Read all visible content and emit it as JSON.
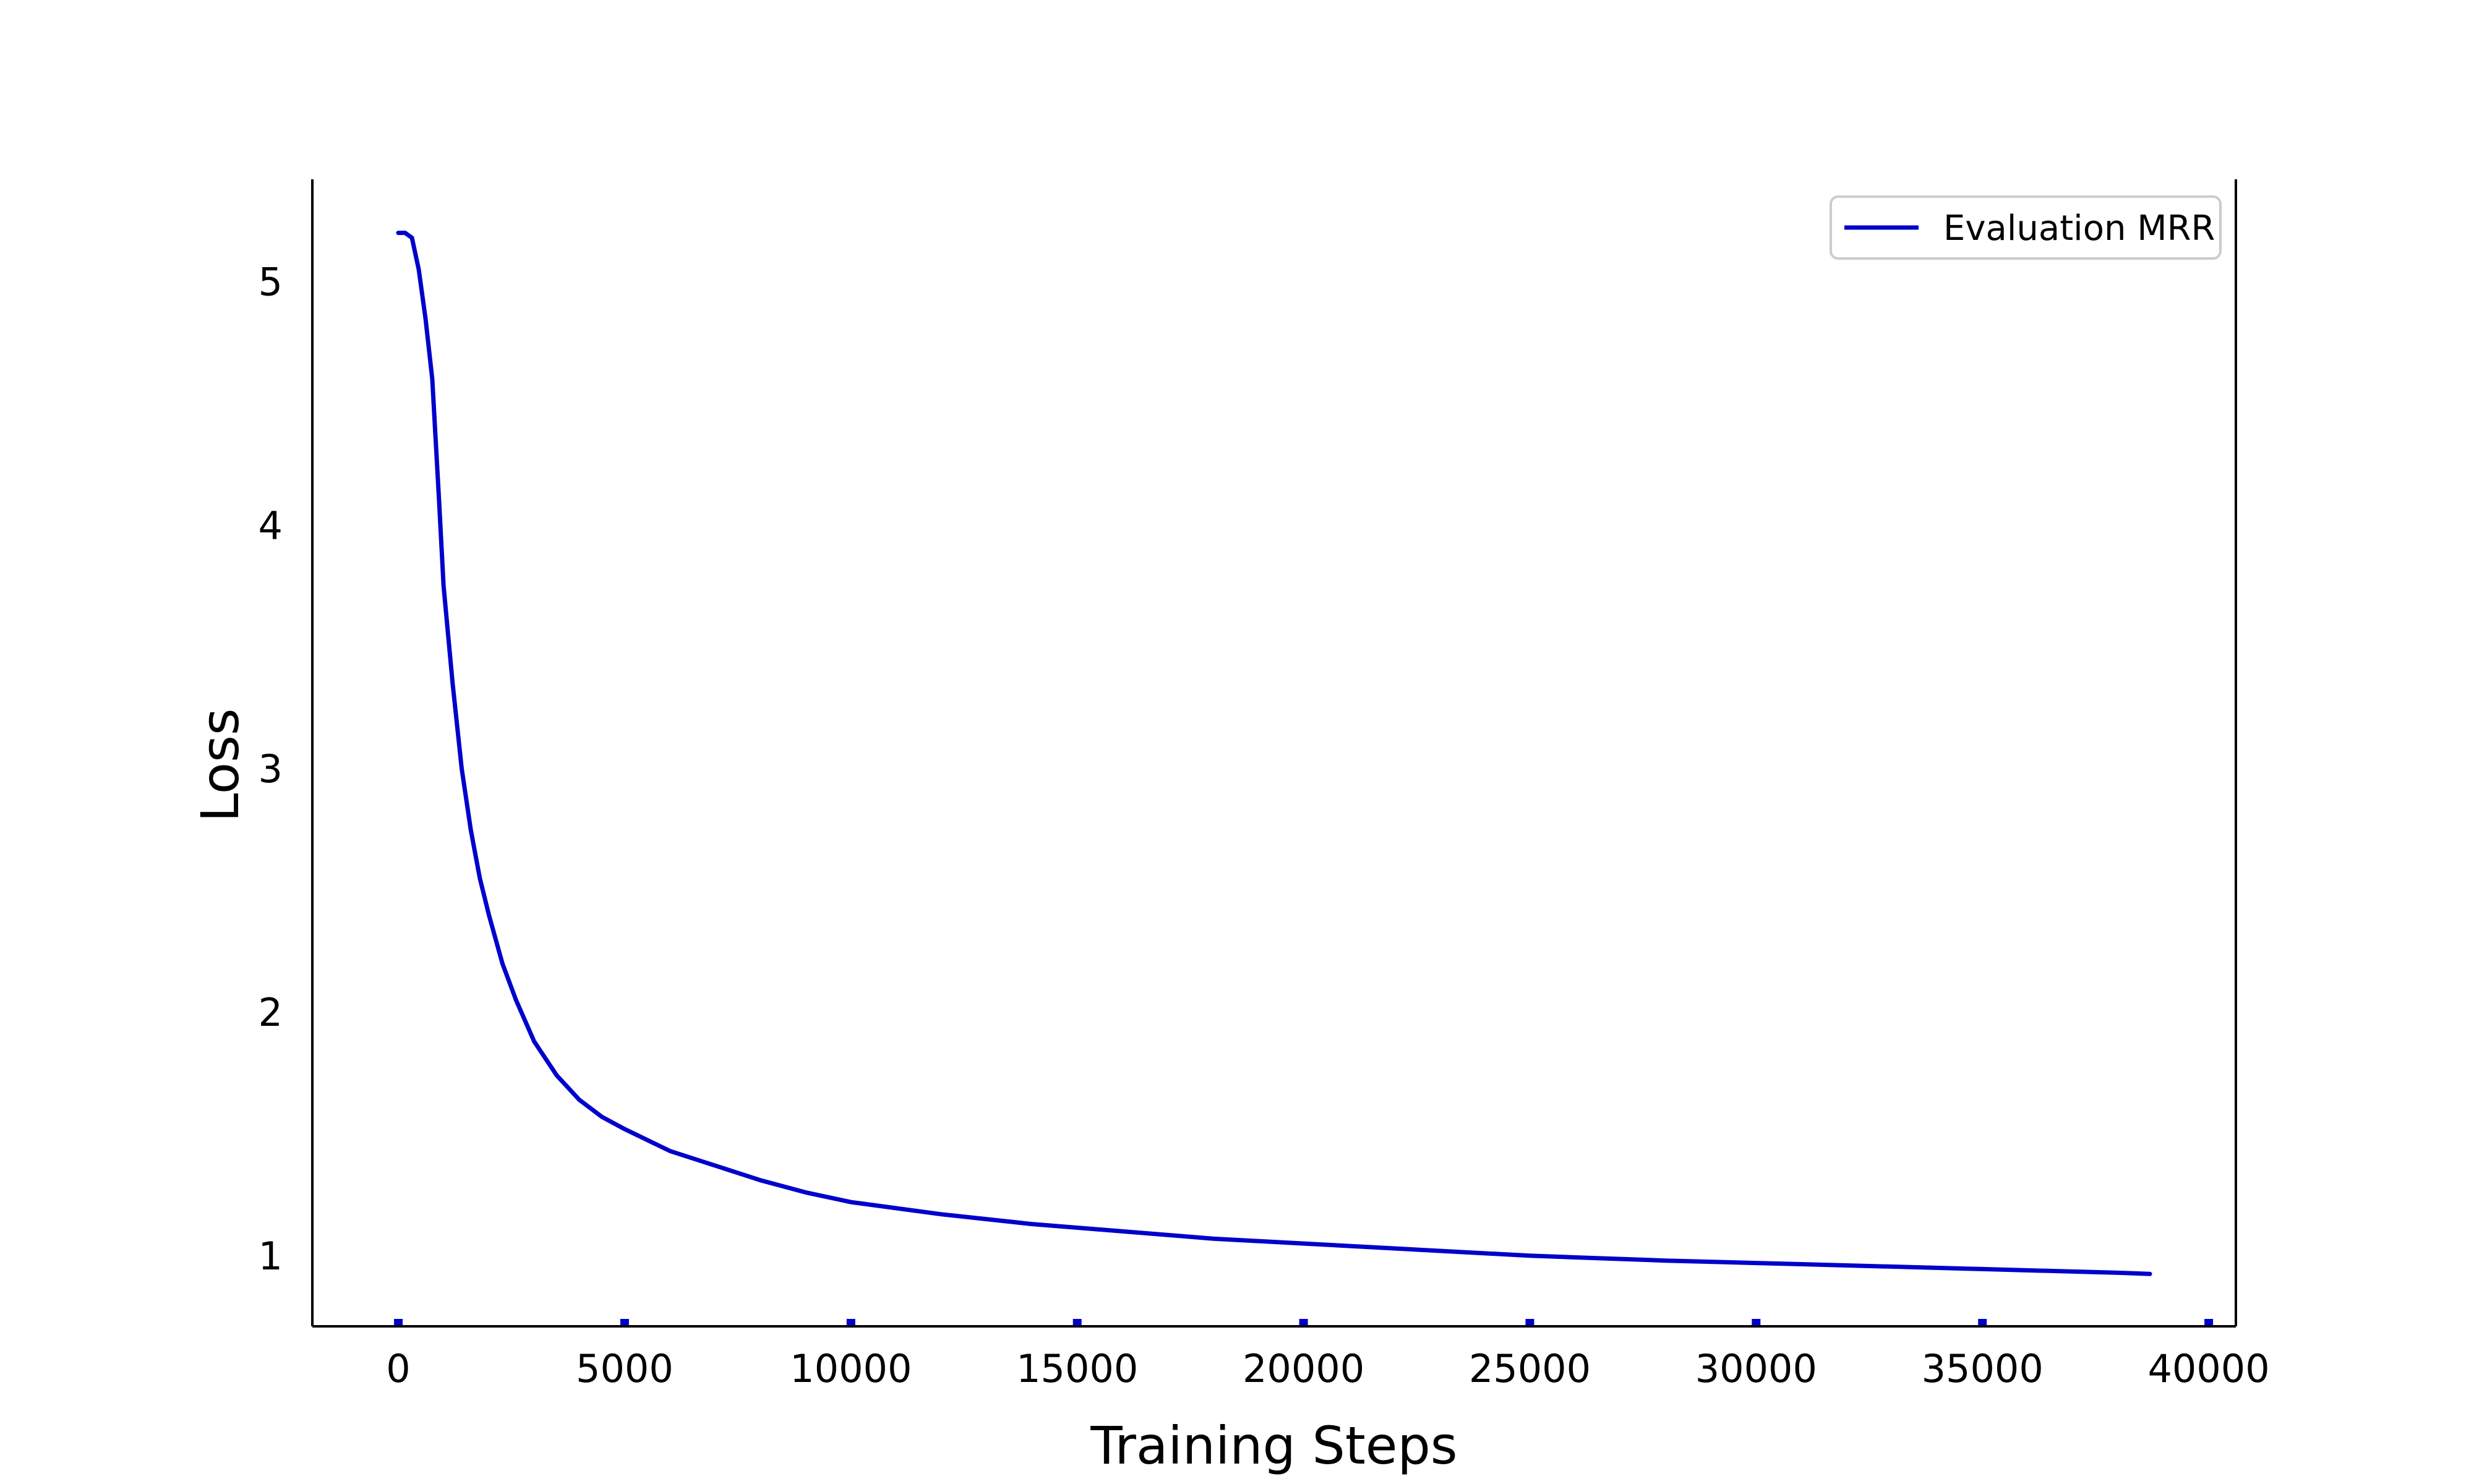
{
  "chart_data": {
    "type": "line",
    "title": "",
    "xlabel": "Training Steps",
    "ylabel": "Loss",
    "xlim": [
      -1900,
      40600
    ],
    "ylim": [
      0.71,
      5.42
    ],
    "xticks": [
      0,
      5000,
      10000,
      15000,
      20000,
      25000,
      30000,
      35000,
      40000
    ],
    "xtick_labels": [
      "0",
      "5000",
      "10000",
      "15000",
      "20000",
      "25000",
      "30000",
      "35000",
      "40000"
    ],
    "yticks": [
      1,
      2,
      3,
      4,
      5
    ],
    "ytick_labels": [
      "1",
      "2",
      "3",
      "4",
      "5"
    ],
    "grid": false,
    "legend_position": "top-right",
    "series": [
      {
        "name": "Evaluation MRR",
        "color": "#0000cc",
        "x": [
          0,
          150,
          300,
          450,
          600,
          750,
          900,
          1000,
          1200,
          1400,
          1600,
          1800,
          2000,
          2300,
          2600,
          3000,
          3500,
          4000,
          4500,
          5000,
          6000,
          7000,
          8000,
          9000,
          10000,
          12000,
          14000,
          16000,
          18000,
          20000,
          22000,
          25000,
          28000,
          30000,
          32000,
          35000,
          38000,
          38700
        ],
        "y": [
          5.2,
          5.2,
          5.18,
          5.05,
          4.85,
          4.6,
          4.1,
          3.75,
          3.35,
          3.0,
          2.75,
          2.55,
          2.4,
          2.2,
          2.05,
          1.88,
          1.74,
          1.64,
          1.57,
          1.52,
          1.43,
          1.37,
          1.31,
          1.26,
          1.22,
          1.17,
          1.13,
          1.1,
          1.07,
          1.05,
          1.03,
          1.0,
          0.98,
          0.97,
          0.96,
          0.945,
          0.93,
          0.925
        ]
      }
    ]
  }
}
